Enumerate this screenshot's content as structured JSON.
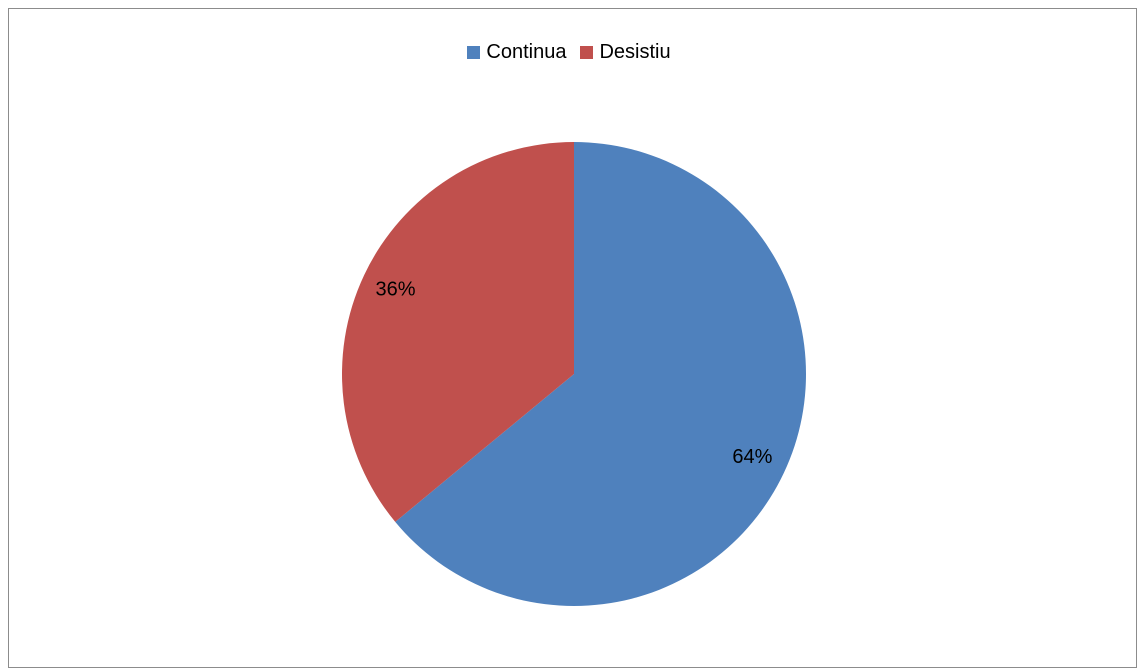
{
  "chart_data": {
    "type": "pie",
    "title": "",
    "legend_position": "top",
    "series": [
      {
        "name": "Continua",
        "value": 64,
        "label": "64%",
        "color": "#4F81BD"
      },
      {
        "name": "Desistiu",
        "value": 36,
        "label": "36%",
        "color": "#C0504D"
      }
    ],
    "start_angle_deg": 0,
    "direction": "clockwise"
  }
}
